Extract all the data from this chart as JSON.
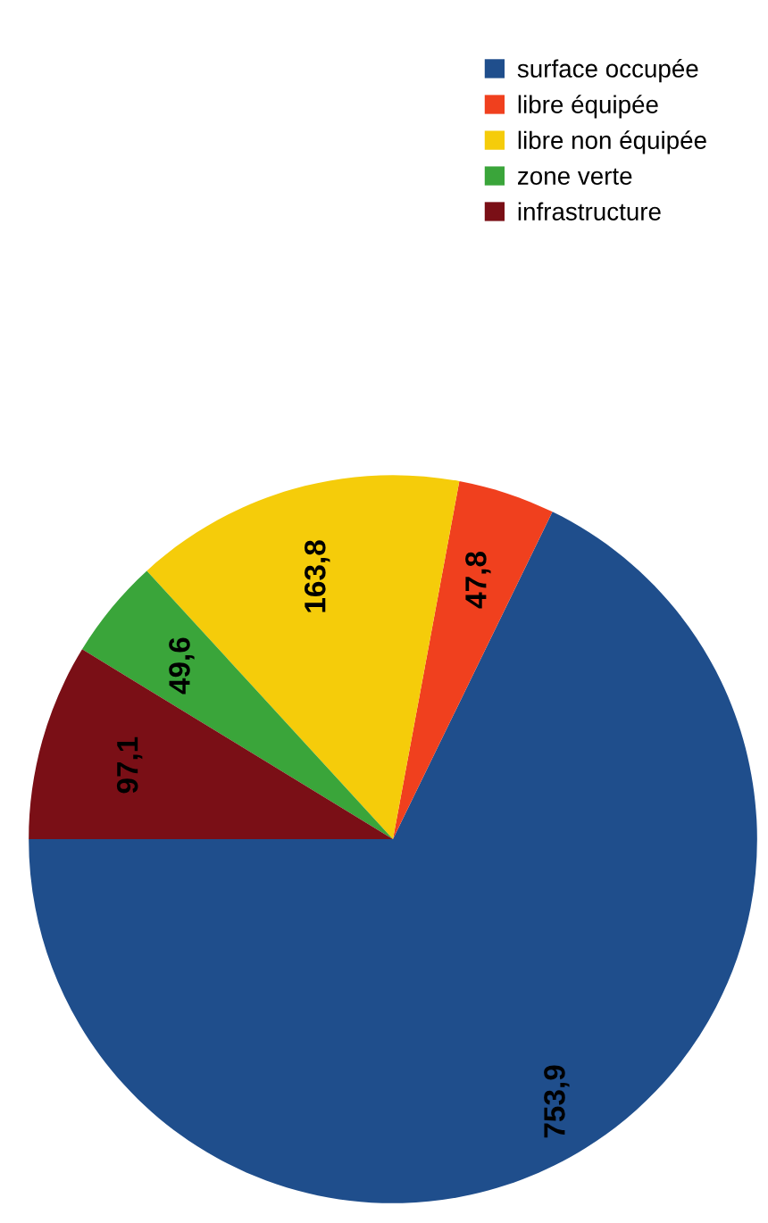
{
  "chart_data": {
    "type": "pie",
    "categories": [
      "surface occupée",
      "libre équipée",
      "libre non équipée",
      "zone verte",
      "infrastructure"
    ],
    "values": [
      753.9,
      47.8,
      163.8,
      49.6,
      97.1
    ],
    "value_labels": [
      "753,9",
      "47,8",
      "163,8",
      "49,6",
      "97,1"
    ],
    "colors": [
      "#1f4e8c",
      "#f0401e",
      "#f5cc0a",
      "#3aa53a",
      "#7a0f16"
    ],
    "legend": "top"
  }
}
